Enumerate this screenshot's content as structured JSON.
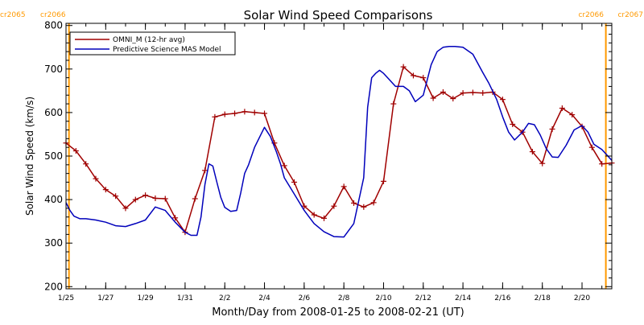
{
  "chart_data": {
    "type": "line",
    "title": "Solar Wind Speed Comparisons",
    "xlabel": "Month/Day from 2008-01-25 to 2008-02-21 (UT)",
    "ylabel": "Solar Wind Speed (km/s)",
    "x_range_days_from_jan25": [
      0,
      27.5
    ],
    "ylim": [
      195,
      805
    ],
    "grid": false,
    "legend_position": "top-left",
    "x_tick_labels": [
      {
        "day": 0,
        "label": "1/25"
      },
      {
        "day": 2,
        "label": "1/27"
      },
      {
        "day": 4,
        "label": "1/29"
      },
      {
        "day": 6,
        "label": "1/31"
      },
      {
        "day": 8,
        "label": "2/2"
      },
      {
        "day": 10,
        "label": "2/4"
      },
      {
        "day": 12,
        "label": "2/6"
      },
      {
        "day": 14,
        "label": "2/8"
      },
      {
        "day": 16,
        "label": "2/10"
      },
      {
        "day": 18,
        "label": "2/12"
      },
      {
        "day": 20,
        "label": "2/14"
      },
      {
        "day": 22,
        "label": "2/16"
      },
      {
        "day": 24,
        "label": "2/18"
      },
      {
        "day": 26,
        "label": "2/20"
      }
    ],
    "y_ticks": [
      200,
      300,
      400,
      500,
      600,
      700,
      800
    ],
    "carrington_markers": [
      {
        "day": 0.15,
        "left_label": "cr2065",
        "right_label": "cr2066",
        "side": "left"
      },
      {
        "day": 27.2,
        "left_label": "cr2066",
        "right_label": "cr2067",
        "side": "right"
      }
    ],
    "marker_color": "#ff9900",
    "series": [
      {
        "name": "OMNI_M (12-hr avg)",
        "color": "#a00000",
        "marker": "plus",
        "x": [
          0,
          0.5,
          1,
          1.5,
          2,
          2.5,
          3,
          3.5,
          4,
          4.5,
          5,
          5.5,
          6,
          6.5,
          7,
          7.5,
          8,
          8.5,
          9,
          9.5,
          10,
          10.5,
          11,
          11.5,
          12,
          12.5,
          13,
          13.5,
          14,
          14.5,
          15,
          15.5,
          16,
          16.5,
          17,
          17.5,
          18,
          18.5,
          19,
          19.5,
          20,
          20.5,
          21,
          21.5,
          22,
          22.5,
          23,
          23.5,
          24,
          24.5,
          25,
          25.5,
          26,
          26.5,
          27,
          27.5
        ],
        "values": [
          530,
          512,
          482,
          448,
          423,
          408,
          380,
          400,
          410,
          403,
          402,
          358,
          325,
          402,
          467,
          590,
          596,
          598,
          602,
          600,
          598,
          530,
          478,
          440,
          385,
          365,
          357,
          385,
          430,
          392,
          383,
          393,
          442,
          620,
          705,
          685,
          680,
          633,
          647,
          632,
          645,
          646,
          645,
          647,
          630,
          573,
          555,
          510,
          483,
          562,
          610,
          595,
          568,
          520,
          482,
          484
        ]
      },
      {
        "name": "Predictive Science MAS Model",
        "color": "#0000bb",
        "marker": "none",
        "x": [
          0,
          0.2,
          0.4,
          0.7,
          1.0,
          1.5,
          2.0,
          2.5,
          3.0,
          3.5,
          4.0,
          4.5,
          5.0,
          5.5,
          6.0,
          6.3,
          6.6,
          6.8,
          7.0,
          7.2,
          7.4,
          7.6,
          7.8,
          8.0,
          8.3,
          8.6,
          8.8,
          9.0,
          9.2,
          9.5,
          10.0,
          10.3,
          10.6,
          10.8,
          11.0,
          11.5,
          12.0,
          12.5,
          13.0,
          13.5,
          14.0,
          14.5,
          15.0,
          15.2,
          15.4,
          15.6,
          15.8,
          16.0,
          16.3,
          16.6,
          17.0,
          17.3,
          17.6,
          18.0,
          18.4,
          18.7,
          19.0,
          19.3,
          19.6,
          20.0,
          20.5,
          21.0,
          21.3,
          21.7,
          22.0,
          22.3,
          22.6,
          23.0,
          23.3,
          23.6,
          23.9,
          24.2,
          24.5,
          24.8,
          25.2,
          25.6,
          26.0,
          26.3,
          26.6,
          27.0,
          27.5
        ],
        "values": [
          393,
          375,
          362,
          356,
          356,
          353,
          348,
          340,
          338,
          345,
          353,
          383,
          375,
          348,
          325,
          318,
          318,
          360,
          435,
          482,
          477,
          440,
          405,
          382,
          373,
          375,
          415,
          460,
          480,
          520,
          566,
          545,
          510,
          483,
          450,
          413,
          375,
          345,
          326,
          315,
          314,
          345,
          450,
          612,
          680,
          690,
          697,
          690,
          675,
          660,
          660,
          650,
          625,
          640,
          710,
          740,
          750,
          752,
          752,
          750,
          734,
          692,
          668,
          630,
          590,
          555,
          537,
          555,
          575,
          572,
          548,
          517,
          498,
          497,
          525,
          560,
          570,
          555,
          527,
          515,
          490
        ]
      }
    ]
  }
}
